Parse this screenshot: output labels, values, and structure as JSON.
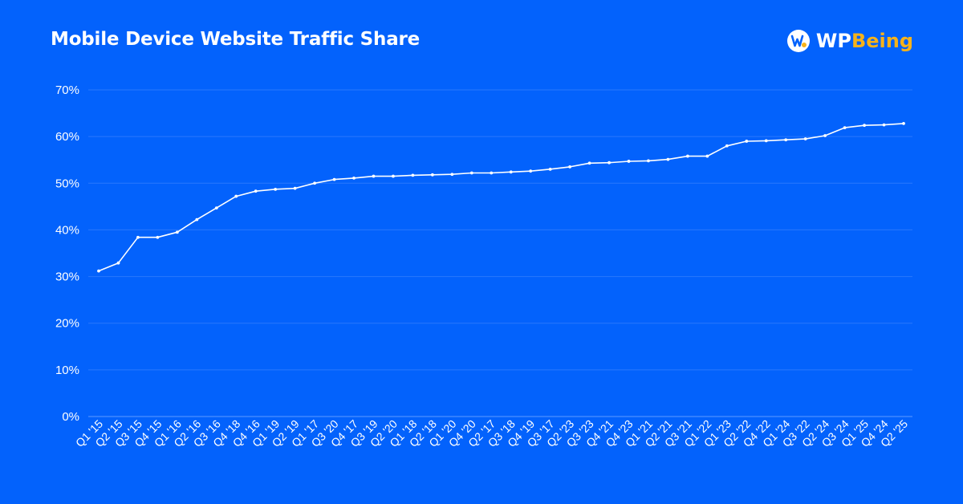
{
  "header": {
    "title": "Mobile Device Website Traffic Share"
  },
  "brand": {
    "name_part1": "WP",
    "name_part2": "Being",
    "logo_icon": "wpbeing-logo-icon",
    "colors": {
      "primary": "#ffffff",
      "accent": "#f6b21b"
    }
  },
  "colors": {
    "background": "#0362fc",
    "line": "#ffffff",
    "grid": "#2a78fd"
  },
  "chart_data": {
    "type": "line",
    "title": "Mobile Device Website Traffic Share",
    "xlabel": "",
    "ylabel": "",
    "ylim": [
      0,
      70
    ],
    "yticks": [
      0,
      10,
      20,
      30,
      40,
      50,
      60,
      70
    ],
    "ytick_labels": [
      "0%",
      "10%",
      "20%",
      "30%",
      "40%",
      "50%",
      "60%",
      "70%"
    ],
    "grid": true,
    "categories": [
      "Q1 '15",
      "Q2 '15",
      "Q3 '15",
      "Q4 '15",
      "Q1 '16",
      "Q2 '16",
      "Q3 '16",
      "Q4 '18",
      "Q4 '16",
      "Q1 '19",
      "Q2 '19",
      "Q1 '17",
      "Q3 '20",
      "Q4 '17",
      "Q3 '19",
      "Q2 '20",
      "Q1 '18",
      "Q2 '18",
      "Q1 '20",
      "Q4 '20",
      "Q2 '17",
      "Q3 '18",
      "Q4 '19",
      "Q3 '17",
      "Q2 '23",
      "Q3 '23",
      "Q4 '21",
      "Q4 '23",
      "Q1 '21",
      "Q2 '21",
      "Q3 '21",
      "Q1 '22",
      "Q1 '23",
      "Q2 '22",
      "Q4 '22",
      "Q1 '24",
      "Q3 '22",
      "Q2 '24",
      "Q3 '24",
      "Q1 '25",
      "Q4 '24",
      "Q2 '25"
    ],
    "values": [
      31.2,
      32.9,
      38.4,
      38.4,
      39.5,
      42.2,
      44.7,
      47.2,
      48.3,
      48.7,
      48.9,
      50.0,
      50.8,
      51.1,
      51.5,
      51.5,
      51.7,
      51.8,
      51.9,
      52.2,
      52.2,
      52.4,
      52.6,
      53.0,
      53.5,
      54.3,
      54.4,
      54.7,
      54.8,
      55.1,
      55.8,
      55.8,
      58.0,
      59.0,
      59.1,
      59.3,
      59.5,
      60.2,
      61.9,
      62.4,
      62.5,
      62.8
    ]
  }
}
